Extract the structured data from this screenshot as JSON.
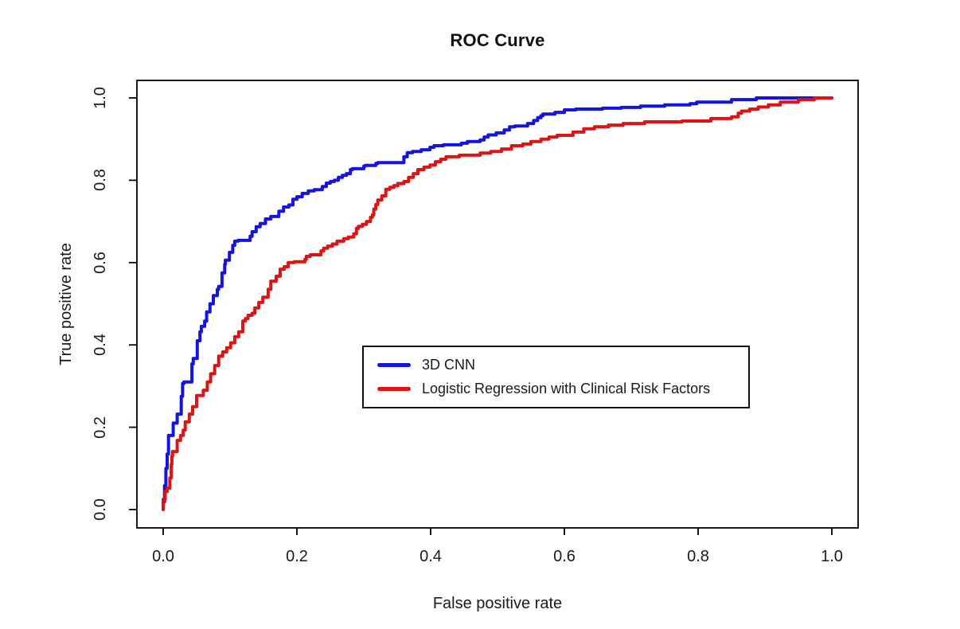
{
  "chart_data": {
    "type": "line",
    "title": "ROC Curve",
    "xlabel": "False positive rate",
    "ylabel": "True positive rate",
    "xlim": [
      0.0,
      1.0
    ],
    "ylim": [
      0.0,
      1.0
    ],
    "x_ticks": [
      0.0,
      0.2,
      0.4,
      0.6,
      0.8,
      1.0
    ],
    "y_ticks": [
      0.0,
      0.2,
      0.4,
      0.6,
      0.8,
      1.0
    ],
    "x_tick_labels": [
      "0.0",
      "0.2",
      "0.4",
      "0.6",
      "0.8",
      "1.0"
    ],
    "y_tick_labels": [
      "0.0",
      "0.2",
      "0.4",
      "0.6",
      "0.8",
      "1.0"
    ],
    "grid": false,
    "curve_style": "step",
    "legend_position": "center-right-inside",
    "axis_color": "#000000",
    "text_color": "#1a1a1a",
    "series": [
      {
        "name": "3D CNN",
        "color": "#1414dd",
        "points": [
          [
            0.0,
            0.0
          ],
          [
            0.002,
            0.019
          ],
          [
            0.004,
            0.058
          ],
          [
            0.006,
            0.1
          ],
          [
            0.008,
            0.135
          ],
          [
            0.015,
            0.18
          ],
          [
            0.021,
            0.21
          ],
          [
            0.027,
            0.232
          ],
          [
            0.029,
            0.275
          ],
          [
            0.031,
            0.306
          ],
          [
            0.043,
            0.31
          ],
          [
            0.045,
            0.354
          ],
          [
            0.051,
            0.367
          ],
          [
            0.055,
            0.41
          ],
          [
            0.057,
            0.432
          ],
          [
            0.062,
            0.445
          ],
          [
            0.065,
            0.458
          ],
          [
            0.07,
            0.48
          ],
          [
            0.075,
            0.5
          ],
          [
            0.081,
            0.52
          ],
          [
            0.083,
            0.535
          ],
          [
            0.088,
            0.542
          ],
          [
            0.092,
            0.575
          ],
          [
            0.093,
            0.596
          ],
          [
            0.099,
            0.606
          ],
          [
            0.104,
            0.625
          ],
          [
            0.107,
            0.642
          ],
          [
            0.112,
            0.652
          ],
          [
            0.13,
            0.654
          ],
          [
            0.133,
            0.664
          ],
          [
            0.139,
            0.675
          ],
          [
            0.145,
            0.687
          ],
          [
            0.153,
            0.695
          ],
          [
            0.161,
            0.706
          ],
          [
            0.173,
            0.712
          ],
          [
            0.18,
            0.725
          ],
          [
            0.188,
            0.735
          ],
          [
            0.194,
            0.74
          ],
          [
            0.2,
            0.754
          ],
          [
            0.208,
            0.76
          ],
          [
            0.217,
            0.768
          ],
          [
            0.226,
            0.774
          ],
          [
            0.238,
            0.777
          ],
          [
            0.244,
            0.785
          ],
          [
            0.25,
            0.793
          ],
          [
            0.256,
            0.797
          ],
          [
            0.262,
            0.8
          ],
          [
            0.268,
            0.807
          ],
          [
            0.274,
            0.812
          ],
          [
            0.28,
            0.816
          ],
          [
            0.283,
            0.826
          ],
          [
            0.3,
            0.828
          ],
          [
            0.302,
            0.834
          ],
          [
            0.318,
            0.836
          ],
          [
            0.321,
            0.841
          ],
          [
            0.36,
            0.843
          ],
          [
            0.365,
            0.857
          ],
          [
            0.373,
            0.867
          ],
          [
            0.386,
            0.87
          ],
          [
            0.399,
            0.874
          ],
          [
            0.405,
            0.88
          ],
          [
            0.419,
            0.884
          ],
          [
            0.446,
            0.886
          ],
          [
            0.455,
            0.89
          ],
          [
            0.474,
            0.894
          ],
          [
            0.48,
            0.898
          ],
          [
            0.486,
            0.905
          ],
          [
            0.498,
            0.91
          ],
          [
            0.51,
            0.915
          ],
          [
            0.518,
            0.922
          ],
          [
            0.526,
            0.93
          ],
          [
            0.545,
            0.932
          ],
          [
            0.554,
            0.938
          ],
          [
            0.56,
            0.945
          ],
          [
            0.565,
            0.952
          ],
          [
            0.568,
            0.957
          ],
          [
            0.586,
            0.961
          ],
          [
            0.6,
            0.965
          ],
          [
            0.617,
            0.971
          ],
          [
            0.657,
            0.973
          ],
          [
            0.685,
            0.975
          ],
          [
            0.714,
            0.977
          ],
          [
            0.75,
            0.98
          ],
          [
            0.788,
            0.983
          ],
          [
            0.798,
            0.986
          ],
          [
            0.85,
            0.99
          ],
          [
            0.887,
            0.996
          ],
          [
            0.923,
            1.0
          ],
          [
            1.0,
            1.0
          ]
        ]
      },
      {
        "name": "Logistic Regression with Clinical Risk Factors",
        "color": "#dd1414",
        "points": [
          [
            0.0,
            0.0
          ],
          [
            0.003,
            0.025
          ],
          [
            0.006,
            0.044
          ],
          [
            0.01,
            0.052
          ],
          [
            0.012,
            0.077
          ],
          [
            0.013,
            0.11
          ],
          [
            0.014,
            0.13
          ],
          [
            0.021,
            0.141
          ],
          [
            0.026,
            0.168
          ],
          [
            0.03,
            0.18
          ],
          [
            0.033,
            0.193
          ],
          [
            0.039,
            0.213
          ],
          [
            0.044,
            0.232
          ],
          [
            0.05,
            0.25
          ],
          [
            0.06,
            0.277
          ],
          [
            0.066,
            0.29
          ],
          [
            0.071,
            0.31
          ],
          [
            0.077,
            0.33
          ],
          [
            0.083,
            0.35
          ],
          [
            0.089,
            0.373
          ],
          [
            0.095,
            0.383
          ],
          [
            0.101,
            0.393
          ],
          [
            0.107,
            0.405
          ],
          [
            0.113,
            0.42
          ],
          [
            0.119,
            0.432
          ],
          [
            0.123,
            0.458
          ],
          [
            0.127,
            0.464
          ],
          [
            0.133,
            0.472
          ],
          [
            0.137,
            0.477
          ],
          [
            0.143,
            0.49
          ],
          [
            0.149,
            0.503
          ],
          [
            0.157,
            0.516
          ],
          [
            0.161,
            0.535
          ],
          [
            0.169,
            0.555
          ],
          [
            0.175,
            0.567
          ],
          [
            0.181,
            0.584
          ],
          [
            0.187,
            0.59
          ],
          [
            0.196,
            0.6
          ],
          [
            0.212,
            0.602
          ],
          [
            0.214,
            0.608
          ],
          [
            0.22,
            0.615
          ],
          [
            0.236,
            0.619
          ],
          [
            0.24,
            0.628
          ],
          [
            0.246,
            0.635
          ],
          [
            0.253,
            0.64
          ],
          [
            0.26,
            0.645
          ],
          [
            0.27,
            0.652
          ],
          [
            0.277,
            0.658
          ],
          [
            0.285,
            0.662
          ],
          [
            0.289,
            0.67
          ],
          [
            0.292,
            0.683
          ],
          [
            0.298,
            0.688
          ],
          [
            0.304,
            0.693
          ],
          [
            0.31,
            0.7
          ],
          [
            0.313,
            0.71
          ],
          [
            0.315,
            0.716
          ],
          [
            0.318,
            0.73
          ],
          [
            0.321,
            0.741
          ],
          [
            0.327,
            0.752
          ],
          [
            0.333,
            0.762
          ],
          [
            0.339,
            0.778
          ],
          [
            0.345,
            0.783
          ],
          [
            0.351,
            0.787
          ],
          [
            0.36,
            0.792
          ],
          [
            0.367,
            0.797
          ],
          [
            0.374,
            0.807
          ],
          [
            0.381,
            0.816
          ],
          [
            0.39,
            0.826
          ],
          [
            0.399,
            0.832
          ],
          [
            0.407,
            0.837
          ],
          [
            0.415,
            0.845
          ],
          [
            0.423,
            0.851
          ],
          [
            0.443,
            0.857
          ],
          [
            0.474,
            0.861
          ],
          [
            0.49,
            0.866
          ],
          [
            0.506,
            0.87
          ],
          [
            0.521,
            0.876
          ],
          [
            0.538,
            0.884
          ],
          [
            0.55,
            0.888
          ],
          [
            0.565,
            0.894
          ],
          [
            0.577,
            0.9
          ],
          [
            0.589,
            0.905
          ],
          [
            0.613,
            0.909
          ],
          [
            0.629,
            0.917
          ],
          [
            0.645,
            0.925
          ],
          [
            0.666,
            0.93
          ],
          [
            0.688,
            0.934
          ],
          [
            0.72,
            0.938
          ],
          [
            0.776,
            0.942
          ],
          [
            0.819,
            0.944
          ],
          [
            0.85,
            0.95
          ],
          [
            0.86,
            0.954
          ],
          [
            0.865,
            0.963
          ],
          [
            0.877,
            0.968
          ],
          [
            0.89,
            0.973
          ],
          [
            0.905,
            0.978
          ],
          [
            0.923,
            0.983
          ],
          [
            0.95,
            0.99
          ],
          [
            0.974,
            0.996
          ],
          [
            1.0,
            1.0
          ]
        ]
      }
    ]
  }
}
